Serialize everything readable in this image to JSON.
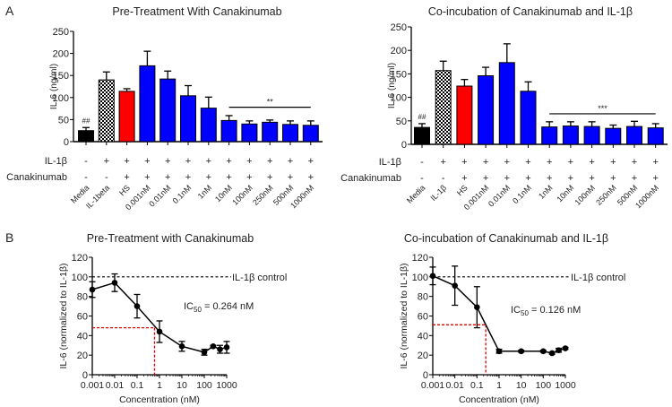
{
  "panel_labels": {
    "a": "A",
    "b": "B"
  },
  "chart_data": [
    {
      "type": "bar",
      "panel": "A",
      "title": "Pre-Treatment With Canakinumab",
      "ylabel": "IL-6 (ng/ml)",
      "ylim": [
        0,
        250
      ],
      "yticks": [
        0,
        50,
        100,
        150,
        200,
        250
      ],
      "categories": [
        "Media",
        "IL-1beta",
        "HS",
        "0.001nM",
        "0.01nM",
        "0.1nM",
        "1nM",
        "10nM",
        "100nM",
        "250nM",
        "500nM",
        "1000nM"
      ],
      "values": [
        25,
        140,
        114,
        172,
        142,
        104,
        76,
        48,
        40,
        44,
        39,
        37
      ],
      "errors": [
        7,
        18,
        6,
        33,
        18,
        23,
        25,
        11,
        7,
        5,
        8,
        10
      ],
      "fills": [
        "black",
        "checker",
        "red",
        "blue",
        "blue",
        "blue",
        "blue",
        "blue",
        "blue",
        "blue",
        "blue",
        "blue"
      ],
      "colors": {
        "black": "#000000",
        "red": "#ff0000",
        "blue": "#0000ff"
      },
      "annotations": {
        "media_mark": "##",
        "sig_mark": "**",
        "sig_from": 7,
        "sig_to": 11,
        "sig_value": 78
      },
      "rows": [
        {
          "label": "IL-1β",
          "marks": [
            "-",
            "+",
            "+",
            "+",
            "+",
            "+",
            "+",
            "+",
            "+",
            "+",
            "+",
            "+"
          ]
        },
        {
          "label": "Canakinumab",
          "marks": [
            "-",
            "-",
            "+",
            "+",
            "+",
            "+",
            "+",
            "+",
            "+",
            "+",
            "+",
            "+"
          ]
        }
      ]
    },
    {
      "type": "bar",
      "panel": "A",
      "title": "Co-incubation of Canakinumab and IL-1β",
      "ylabel": "IL-6 (ng/ml)",
      "ylim": [
        0,
        250
      ],
      "yticks": [
        0,
        50,
        100,
        150,
        200,
        250
      ],
      "categories": [
        "Media",
        "IL-1β",
        "HS",
        "0.001nM",
        "0.01nM",
        "0.1nM",
        "1nM",
        "10nM",
        "100nM",
        "250nM",
        "500nM",
        "1000nM"
      ],
      "values": [
        36,
        157,
        124,
        146,
        174,
        113,
        37,
        39,
        38,
        34,
        38,
        35
      ],
      "errors": [
        8,
        20,
        14,
        18,
        40,
        20,
        11,
        9,
        10,
        7,
        11,
        9
      ],
      "fills": [
        "black",
        "checker",
        "red",
        "blue",
        "blue",
        "blue",
        "blue",
        "blue",
        "blue",
        "blue",
        "blue",
        "blue"
      ],
      "colors": {
        "black": "#000000",
        "red": "#ff0000",
        "blue": "#0000ff"
      },
      "annotations": {
        "media_mark": "##",
        "sig_mark": "***",
        "sig_from": 6,
        "sig_to": 11,
        "sig_value": 65
      },
      "rows": [
        {
          "label": "IL-1β",
          "marks": [
            "-",
            "+",
            "+",
            "+",
            "+",
            "+",
            "+",
            "+",
            "+",
            "+",
            "+",
            "+"
          ]
        },
        {
          "label": "Canakinumab",
          "marks": [
            "-",
            "-",
            "+",
            "+",
            "+",
            "+",
            "+",
            "+",
            "+",
            "+",
            "+",
            "+"
          ]
        }
      ]
    },
    {
      "type": "line",
      "panel": "B",
      "title": "Pre-Treatment with Canakinumab",
      "xlabel": "Concentration (nM)",
      "ylabel": "IL-6 (normalized to IL-1β)",
      "xscale": "log",
      "xlim": [
        0.001,
        1000
      ],
      "xticks": [
        "0.001",
        "0.01",
        "0.1",
        "1",
        "10",
        "100",
        "1000"
      ],
      "ylim": [
        0,
        120
      ],
      "yticks": [
        0,
        20,
        40,
        60,
        80,
        100,
        120
      ],
      "x": [
        0.001,
        0.01,
        0.1,
        1,
        10,
        100,
        250,
        500,
        1000
      ],
      "y": [
        87,
        94,
        70,
        44,
        29,
        23,
        29,
        26,
        28
      ],
      "errors": [
        8,
        9,
        12,
        11,
        5,
        3,
        1,
        4,
        6
      ],
      "control_value": 100,
      "control_label": "IL-1β control",
      "ic50_label": "IC",
      "ic50_sub": "50",
      "ic50_text": " = 0.264 nM",
      "ic50_x": 0.6,
      "ic50_y": 48,
      "colors": {
        "line": "#000000",
        "ic50_guide": "#e00000"
      }
    },
    {
      "type": "line",
      "panel": "B",
      "title": "Co-incubation of Canakinumab and IL-1β",
      "xlabel": "Concentration (nM)",
      "ylabel": "IL-6 (normalized to IL-1β)",
      "xscale": "log",
      "xlim": [
        0.001,
        1000
      ],
      "xticks": [
        "0.001",
        "0.01",
        "0.1",
        "1",
        "10",
        "100",
        "1000"
      ],
      "ylim": [
        0,
        120
      ],
      "yticks": [
        0,
        20,
        40,
        60,
        80,
        100,
        120
      ],
      "x": [
        0.001,
        0.01,
        0.1,
        1,
        10,
        100,
        250,
        500,
        1000
      ],
      "y": [
        101,
        91,
        69,
        24,
        24,
        24,
        22,
        25,
        27
      ],
      "errors": [
        9,
        20,
        21,
        2,
        1,
        1,
        1,
        2,
        1
      ],
      "control_value": 100,
      "control_label": "IL-1β control",
      "ic50_label": "IC",
      "ic50_sub": "50",
      "ic50_text": " = 0.126 nM",
      "ic50_x": 0.25,
      "ic50_y": 51,
      "colors": {
        "line": "#000000",
        "ic50_guide": "#e00000"
      }
    }
  ]
}
